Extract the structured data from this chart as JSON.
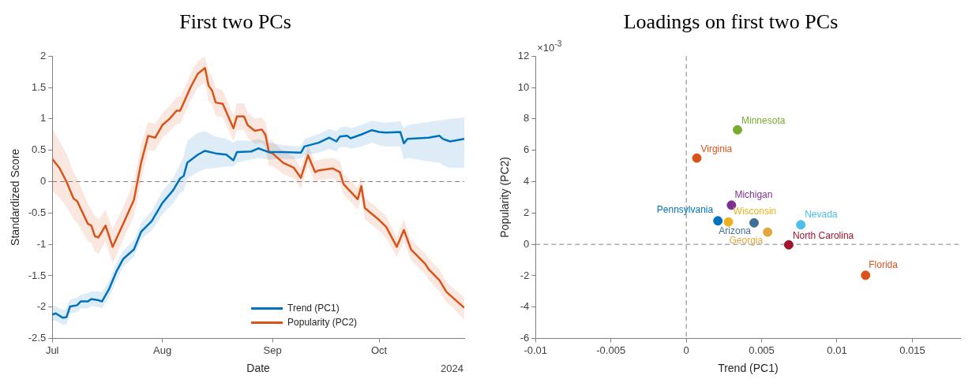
{
  "chart_data": [
    {
      "type": "line",
      "title": "First two PCs",
      "xlabel": "Date",
      "ylabel": "Standardized Score",
      "xlim": [
        "2024-07-01",
        "2024-10-25"
      ],
      "xticks": [
        {
          "value": "2024-07-01",
          "label": "Jul"
        },
        {
          "value": "2024-08-01",
          "label": "Aug"
        },
        {
          "value": "2024-09-01",
          "label": "Sep"
        },
        {
          "value": "2024-10-01",
          "label": "Oct"
        }
      ],
      "ylim": [
        -2.5,
        2
      ],
      "yticks": [
        -2.5,
        -2,
        -1.5,
        -1,
        -0.5,
        0,
        0.5,
        1,
        1.5,
        2
      ],
      "marker": "none",
      "legend": "bottom",
      "annotations": [
        "2024"
      ],
      "ref_lines": [
        {
          "axis": "y",
          "value": 0,
          "color": "#808080",
          "line_style": "dashed"
        }
      ],
      "series": [
        {
          "name": "Trend (PC1)",
          "color": "#0072bd",
          "x": [
            "2024-07-01",
            "2024-07-02",
            "2024-07-04",
            "2024-07-05",
            "2024-07-06",
            "2024-07-08",
            "2024-07-09",
            "2024-07-11",
            "2024-07-12",
            "2024-07-14",
            "2024-07-15",
            "2024-07-17",
            "2024-07-19",
            "2024-07-21",
            "2024-07-24",
            "2024-07-26",
            "2024-07-29",
            "2024-08-01",
            "2024-08-04",
            "2024-08-06",
            "2024-08-07",
            "2024-08-08",
            "2024-08-11",
            "2024-08-13",
            "2024-08-16",
            "2024-08-19",
            "2024-08-21",
            "2024-08-22",
            "2024-08-26",
            "2024-08-28",
            "2024-08-31",
            "2024-09-04",
            "2024-09-09",
            "2024-09-10",
            "2024-09-14",
            "2024-09-17",
            "2024-09-19",
            "2024-09-20",
            "2024-09-22",
            "2024-09-23",
            "2024-09-26",
            "2024-09-29",
            "2024-10-01",
            "2024-10-03",
            "2024-10-07",
            "2024-10-08",
            "2024-10-09",
            "2024-10-15",
            "2024-10-18",
            "2024-10-19",
            "2024-10-21",
            "2024-10-25"
          ],
          "values": [
            -2.12,
            -2.1,
            -2.17,
            -2.16,
            -1.99,
            -1.97,
            -1.91,
            -1.91,
            -1.87,
            -1.89,
            -1.91,
            -1.71,
            -1.44,
            -1.23,
            -1.08,
            -0.8,
            -0.63,
            -0.34,
            -0.14,
            0.05,
            0.09,
            0.3,
            0.43,
            0.49,
            0.45,
            0.43,
            0.34,
            0.47,
            0.48,
            0.53,
            0.47,
            0.47,
            0.46,
            0.56,
            0.62,
            0.7,
            0.64,
            0.72,
            0.73,
            0.69,
            0.75,
            0.82,
            0.79,
            0.78,
            0.79,
            0.61,
            0.68,
            0.7,
            0.73,
            0.68,
            0.64,
            0.68
          ],
          "lower": [
            -2.22,
            -2.22,
            -2.28,
            -2.28,
            -2.1,
            -2.08,
            -2.02,
            -2.02,
            -1.98,
            -2.0,
            -2.02,
            -1.85,
            -1.58,
            -1.36,
            -1.2,
            -0.92,
            -0.78,
            -0.52,
            -0.35,
            -0.18,
            -0.15,
            0.05,
            0.15,
            0.2,
            0.22,
            0.24,
            0.24,
            0.3,
            0.35,
            0.38,
            0.35,
            0.36,
            0.36,
            0.42,
            0.46,
            0.52,
            0.48,
            0.55,
            0.55,
            0.52,
            0.56,
            0.62,
            0.58,
            0.56,
            0.56,
            0.35,
            0.38,
            0.32,
            0.3,
            0.26,
            0.22,
            0.22
          ],
          "upper": [
            -1.98,
            -1.98,
            -2.05,
            -2.02,
            -1.88,
            -1.85,
            -1.8,
            -1.78,
            -1.75,
            -1.75,
            -1.76,
            -1.58,
            -1.3,
            -1.1,
            -0.93,
            -0.66,
            -0.47,
            -0.15,
            0.05,
            0.28,
            0.4,
            0.65,
            0.78,
            0.8,
            0.72,
            0.68,
            0.62,
            0.66,
            0.65,
            0.68,
            0.62,
            0.58,
            0.56,
            0.68,
            0.76,
            0.84,
            0.8,
            0.86,
            0.88,
            0.85,
            0.9,
            0.97,
            0.95,
            0.94,
            0.96,
            0.85,
            0.9,
            0.95,
            0.98,
            0.98,
            1.0,
            1.02
          ]
        },
        {
          "name": "Popularity (PC2)",
          "color": "#d95319",
          "x": [
            "2024-07-01",
            "2024-07-03",
            "2024-07-05",
            "2024-07-07",
            "2024-07-08",
            "2024-07-11",
            "2024-07-12",
            "2024-07-13",
            "2024-07-14",
            "2024-07-16",
            "2024-07-18",
            "2024-07-21",
            "2024-07-24",
            "2024-07-26",
            "2024-07-28",
            "2024-07-30",
            "2024-08-01",
            "2024-08-03",
            "2024-08-05",
            "2024-08-06",
            "2024-08-09",
            "2024-08-11",
            "2024-08-13",
            "2024-08-14",
            "2024-08-15",
            "2024-08-16",
            "2024-08-18",
            "2024-08-21",
            "2024-08-22",
            "2024-08-24",
            "2024-08-25",
            "2024-08-27",
            "2024-08-29",
            "2024-08-30",
            "2024-08-31",
            "2024-09-01",
            "2024-09-04",
            "2024-09-07",
            "2024-09-09",
            "2024-09-11",
            "2024-09-13",
            "2024-09-14",
            "2024-09-18",
            "2024-09-20",
            "2024-09-21",
            "2024-09-25",
            "2024-09-26",
            "2024-09-27",
            "2024-10-01",
            "2024-10-03",
            "2024-10-06",
            "2024-10-08",
            "2024-10-10",
            "2024-10-14",
            "2024-10-15",
            "2024-10-18",
            "2024-10-20",
            "2024-10-22",
            "2024-10-25"
          ],
          "values": [
            0.36,
            0.22,
            0.0,
            -0.27,
            -0.31,
            -0.67,
            -0.7,
            -0.87,
            -0.89,
            -0.7,
            -1.04,
            -0.67,
            -0.29,
            0.3,
            0.73,
            0.7,
            0.9,
            1.0,
            1.13,
            1.13,
            1.51,
            1.72,
            1.81,
            1.53,
            1.45,
            1.26,
            1.24,
            0.85,
            1.04,
            1.04,
            0.9,
            0.81,
            0.83,
            0.75,
            0.47,
            0.45,
            0.3,
            0.22,
            0.06,
            0.42,
            0.15,
            0.18,
            0.21,
            0.15,
            -0.04,
            -0.28,
            -0.07,
            -0.42,
            -0.61,
            -0.72,
            -1.04,
            -0.77,
            -1.08,
            -1.31,
            -1.4,
            -1.57,
            -1.76,
            -1.86,
            -2.01
          ],
          "lower": [
            -0.15,
            -0.25,
            -0.4,
            -0.6,
            -0.65,
            -0.95,
            -0.98,
            -1.12,
            -1.15,
            -0.95,
            -1.3,
            -0.92,
            -0.55,
            0.0,
            0.5,
            0.5,
            0.7,
            0.8,
            0.92,
            0.92,
            1.3,
            1.5,
            1.58,
            1.3,
            1.22,
            1.05,
            1.02,
            0.65,
            0.82,
            0.82,
            0.7,
            0.6,
            0.62,
            0.55,
            0.25,
            0.25,
            0.12,
            0.05,
            -0.12,
            0.25,
            -0.02,
            0.02,
            0.05,
            -0.02,
            -0.2,
            -0.45,
            -0.25,
            -0.6,
            -0.78,
            -0.9,
            -1.2,
            -0.95,
            -1.25,
            -1.48,
            -1.57,
            -1.75,
            -1.92,
            -2.02,
            -2.2
          ],
          "upper": [
            0.85,
            0.65,
            0.45,
            0.15,
            0.05,
            -0.35,
            -0.45,
            -0.55,
            -0.6,
            -0.45,
            -0.75,
            -0.4,
            0.0,
            0.6,
            0.95,
            0.92,
            1.1,
            1.2,
            1.35,
            1.35,
            1.72,
            1.92,
            2.0,
            1.75,
            1.68,
            1.5,
            1.45,
            1.05,
            1.25,
            1.25,
            1.1,
            1.0,
            1.02,
            0.95,
            0.68,
            0.65,
            0.48,
            0.4,
            0.22,
            0.58,
            0.32,
            0.35,
            0.38,
            0.32,
            0.12,
            -0.1,
            0.1,
            -0.25,
            -0.45,
            -0.55,
            -0.88,
            -0.6,
            -0.92,
            -1.15,
            -1.23,
            -1.4,
            -1.6,
            -1.7,
            -1.85
          ]
        }
      ]
    },
    {
      "type": "scatter",
      "title": "Loadings on first two PCs",
      "xlabel": "Trend (PC1)",
      "ylabel": "Popularity (PC2)",
      "xlim": [
        -0.01,
        0.0182
      ],
      "xticks": [
        -0.01,
        -0.005,
        0,
        0.005,
        0.01,
        0.015
      ],
      "ylim": [
        -6,
        12
      ],
      "yticks": [
        -6,
        -4,
        -2,
        0,
        2,
        4,
        6,
        8,
        10,
        12
      ],
      "marker": "circle",
      "annotations": [
        "×10$^{-3}$"
      ],
      "ref_lines": [
        {
          "axis": "x",
          "value": 0,
          "color": "#808080",
          "line_style": "dashed"
        },
        {
          "axis": "y",
          "value": 0,
          "color": "#808080",
          "line_style": "dashed"
        }
      ],
      "series": [
        {
          "name": "Minnesota",
          "color": "#77ac30",
          "x": [
            0.0034
          ],
          "values": [
            7.3
          ]
        },
        {
          "name": "Virginia",
          "color": "#d95319",
          "x": [
            0.0007
          ],
          "values": [
            5.5
          ]
        },
        {
          "name": "Michigan",
          "color": "#7e2f8e",
          "x": [
            0.003
          ],
          "values": [
            2.5
          ]
        },
        {
          "name": "Pennsylvania",
          "color": "#0072bd",
          "x": [
            0.0021
          ],
          "values": [
            1.5
          ]
        },
        {
          "name": "Wisconsin",
          "color": "#edb120",
          "x": [
            0.0028
          ],
          "values": [
            1.43
          ]
        },
        {
          "name": "Arizona",
          "color": "#3f6f98",
          "x": [
            0.0045
          ],
          "values": [
            1.37
          ]
        },
        {
          "name": "Georgia",
          "color": "#e0a83a",
          "x": [
            0.0054
          ],
          "values": [
            0.78
          ]
        },
        {
          "name": "Nevada",
          "color": "#4dbeee",
          "x": [
            0.0076
          ],
          "values": [
            1.25
          ]
        },
        {
          "name": "North Carolina",
          "color": "#a2142f",
          "x": [
            0.0068
          ],
          "values": [
            -0.03
          ]
        },
        {
          "name": "Florida",
          "color": "#d95319",
          "x": [
            0.0119
          ],
          "values": [
            -1.97
          ]
        }
      ]
    }
  ]
}
